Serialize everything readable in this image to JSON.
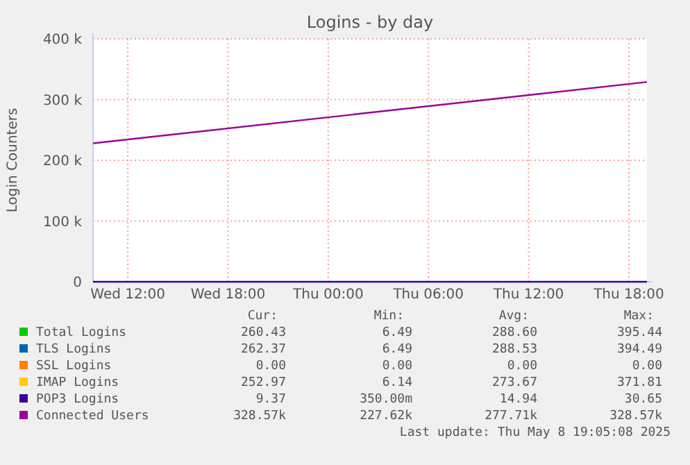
{
  "chart_data": {
    "type": "line",
    "title": "Logins - by day",
    "ylabel": "Login Counters",
    "x": [
      "2025-05-07T09:55",
      "2025-05-08T19:05"
    ],
    "xlim": [
      "2025-05-07T09:55",
      "2025-05-08T19:05"
    ],
    "xticks": [
      {
        "value": "2025-05-07T12:00",
        "label": "Wed 12:00"
      },
      {
        "value": "2025-05-07T18:00",
        "label": "Wed 18:00"
      },
      {
        "value": "2025-05-08T00:00",
        "label": "Thu 00:00"
      },
      {
        "value": "2025-05-08T06:00",
        "label": "Thu 06:00"
      },
      {
        "value": "2025-05-08T12:00",
        "label": "Thu 12:00"
      },
      {
        "value": "2025-05-08T18:00",
        "label": "Thu 18:00"
      }
    ],
    "ylim": [
      0,
      400000
    ],
    "yticks": [
      0,
      {
        "value": 100000,
        "label": "100 k"
      },
      {
        "value": 200000,
        "label": "200 k"
      },
      {
        "value": 300000,
        "label": "300 k"
      },
      {
        "value": 400000,
        "label": "400 k"
      }
    ],
    "grid": true,
    "legend": "bottom",
    "marker": "none",
    "line_style": "solid",
    "series": [
      {
        "name": "Total Logins",
        "color": "#00cc00",
        "values": [
          null,
          null
        ]
      },
      {
        "name": "TLS Logins",
        "color": "#0066b3",
        "values": [
          null,
          null
        ]
      },
      {
        "name": "SSL Logins",
        "color": "#ff8000",
        "values": [
          null,
          null
        ]
      },
      {
        "name": "IMAP Logins",
        "color": "#ffcc00",
        "values": [
          null,
          null
        ]
      },
      {
        "name": "POP3 Logins",
        "color": "#330099",
        "values": [
          0,
          0
        ]
      },
      {
        "name": "Connected Users",
        "color": "#990099",
        "values": [
          228000,
          329000
        ]
      }
    ],
    "annotations": [
      "Cur:",
      "Min:",
      "Avg:",
      "Max:",
      "260.43",
      "6.49",
      "288.60",
      "395.44",
      "262.37",
      "6.49",
      "288.53",
      "394.49",
      "0.00",
      "0.00",
      "0.00",
      "0.00",
      "252.97",
      "6.14",
      "273.67",
      "371.81",
      "9.37",
      "350.00m",
      "14.94",
      "30.65",
      "328.57k",
      "227.62k",
      "277.71k",
      "328.57k",
      "Last update: Thu May  8 19:05:08 2025"
    ]
  }
}
